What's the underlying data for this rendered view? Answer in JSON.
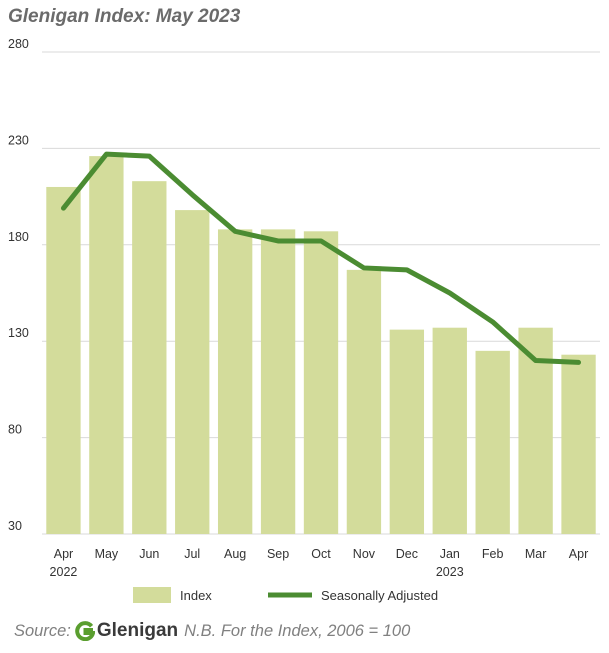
{
  "title": "Glenigan Index: May 2023",
  "colors": {
    "bar": "#d3dc9b",
    "line": "#4b8c32",
    "grid": "#d9d9d9",
    "logo_green": "#5a9e2f"
  },
  "footer": {
    "source_label": "Source:",
    "logo_mark": "G",
    "logo_text": "Glenigan",
    "note": "N.B. For the Index, 2006 = 100"
  },
  "chart_data": {
    "type": "bar",
    "title": "Glenigan Index: May 2023",
    "categories": [
      "Apr",
      "May",
      "Jun",
      "Jul",
      "Aug",
      "Sep",
      "Oct",
      "Nov",
      "Dec",
      "Jan",
      "Feb",
      "Mar",
      "Apr"
    ],
    "year_labels": [
      "2022",
      "",
      "",
      "",
      "",
      "",
      "",
      "",
      "",
      "2023",
      "",
      "",
      ""
    ],
    "ylim": [
      30,
      280
    ],
    "yticks": [
      30,
      80,
      130,
      180,
      230,
      280
    ],
    "grid": true,
    "series": [
      {
        "name": "Index",
        "kind": "bar",
        "values": [
          210,
          226,
          213,
          198,
          188,
          188,
          187,
          167,
          136,
          137,
          125,
          137,
          123
        ]
      },
      {
        "name": "Seasonally Adjusted",
        "kind": "line",
        "values": [
          199,
          227,
          226,
          206,
          187,
          182,
          182,
          168,
          167,
          155,
          140,
          120,
          119
        ]
      }
    ],
    "legend": [
      "Index",
      "Seasonally Adjusted"
    ],
    "legend_position": "bottom"
  }
}
